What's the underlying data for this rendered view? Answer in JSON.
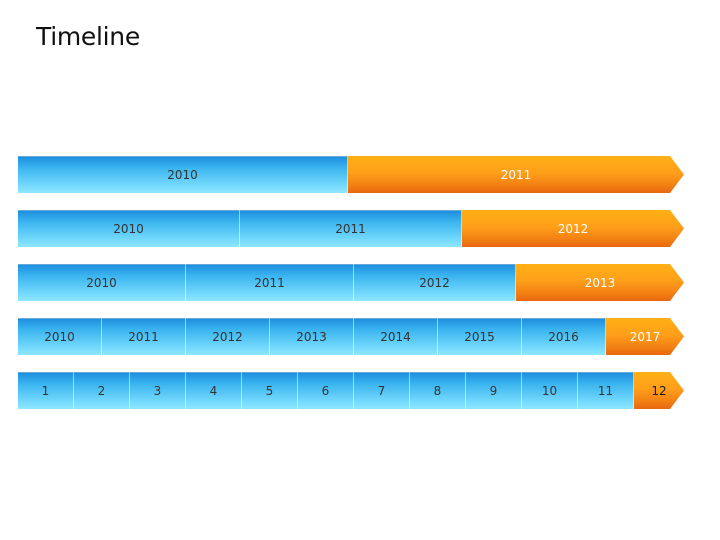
{
  "title": "Timeline",
  "rows": [
    {
      "segments": [
        {
          "label": "2010",
          "color": "blue"
        },
        {
          "label": "2011",
          "color": "orange"
        }
      ]
    },
    {
      "segments": [
        {
          "label": "2010",
          "color": "blue"
        },
        {
          "label": "2011",
          "color": "blue"
        },
        {
          "label": "2012",
          "color": "orange"
        }
      ]
    },
    {
      "segments": [
        {
          "label": "2010",
          "color": "blue"
        },
        {
          "label": "2011",
          "color": "blue"
        },
        {
          "label": "2012",
          "color": "blue"
        },
        {
          "label": "2013",
          "color": "orange"
        }
      ]
    },
    {
      "segments": [
        {
          "label": "2010",
          "color": "blue"
        },
        {
          "label": "2011",
          "color": "blue"
        },
        {
          "label": "2012",
          "color": "blue"
        },
        {
          "label": "2013",
          "color": "blue"
        },
        {
          "label": "2014",
          "color": "blue"
        },
        {
          "label": "2015",
          "color": "blue"
        },
        {
          "label": "2016",
          "color": "blue"
        },
        {
          "label": "2017",
          "color": "orange"
        }
      ]
    },
    {
      "segments": [
        {
          "label": "1",
          "color": "blue"
        },
        {
          "label": "2",
          "color": "blue"
        },
        {
          "label": "3",
          "color": "blue"
        },
        {
          "label": "4",
          "color": "blue"
        },
        {
          "label": "5",
          "color": "blue"
        },
        {
          "label": "6",
          "color": "blue"
        },
        {
          "label": "7",
          "color": "blue"
        },
        {
          "label": "8",
          "color": "blue"
        },
        {
          "label": "9",
          "color": "blue"
        },
        {
          "label": "10",
          "color": "blue"
        },
        {
          "label": "11",
          "color": "blue"
        },
        {
          "label": "12",
          "color": "orange"
        }
      ]
    }
  ],
  "colors": {
    "blue": "#3bb4ef",
    "orange": "#ff9f1a"
  }
}
